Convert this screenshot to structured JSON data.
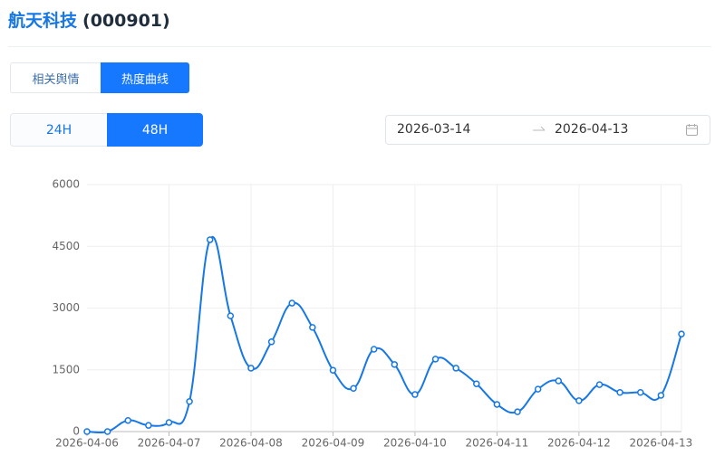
{
  "header": {
    "title": "航天科技",
    "code": "(000901)"
  },
  "tabs": [
    "相关舆情",
    "热度曲线"
  ],
  "range_buttons": [
    "24H",
    "48H"
  ],
  "date_range": {
    "start": "2026-03-14",
    "end": "2026-04-13"
  },
  "chart_data": {
    "type": "line",
    "categories": [
      "2026-04-06",
      null,
      null,
      null,
      "2026-04-07",
      null,
      null,
      null,
      "2026-04-08",
      null,
      null,
      null,
      "2026-04-09",
      null,
      null,
      null,
      "2026-04-10",
      null,
      null,
      null,
      "2026-04-11",
      null,
      null,
      null,
      "2026-04-12",
      null,
      null,
      null,
      "2026-04-13",
      null
    ],
    "series": [
      {
        "color": "#1677e5",
        "values": [
          0,
          0,
          270,
          150,
          220,
          730,
          4660,
          2810,
          1540,
          2180,
          3120,
          2530,
          1490,
          1050,
          2000,
          1630,
          900,
          1760,
          1540,
          1160,
          660,
          480,
          1030,
          1230,
          750,
          1140,
          950,
          950,
          880,
          2370
        ]
      }
    ],
    "ylim": [
      0,
      6000
    ],
    "yticks": [
      0,
      1500,
      3000,
      4500,
      6000
    ],
    "grid": true
  }
}
